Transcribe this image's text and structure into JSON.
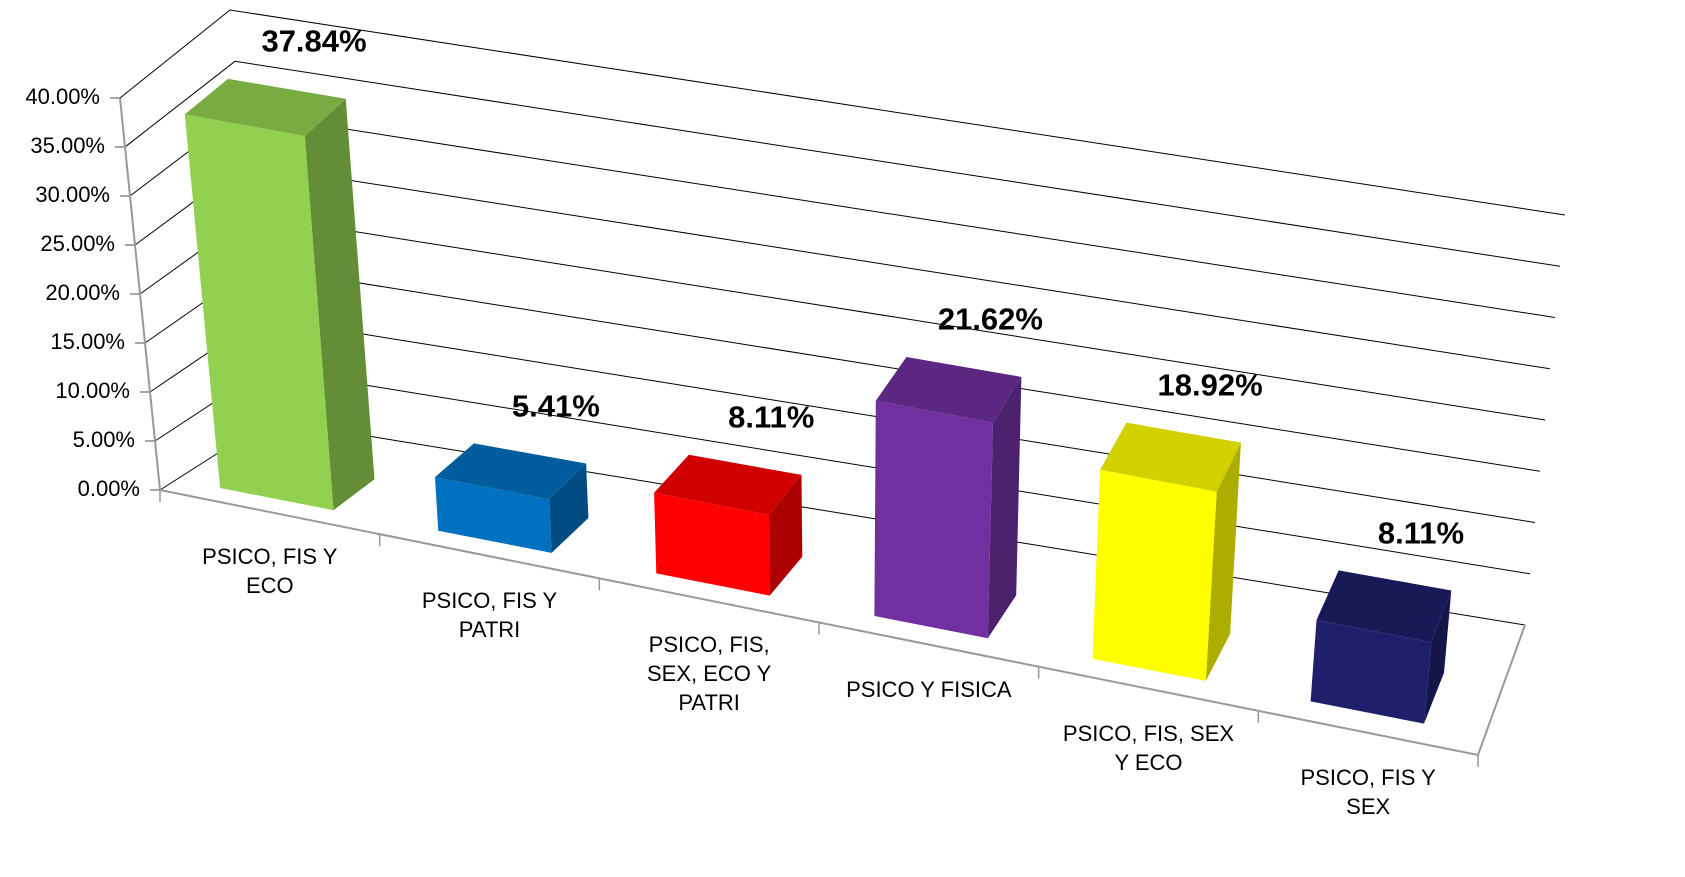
{
  "chart_data": {
    "type": "bar3d",
    "categories": [
      "PSICO, FIS Y ECO",
      "PSICO, FIS Y PATRI",
      "PSICO, FIS, SEX, ECO Y PATRI",
      "PSICO Y FISICA",
      "PSICO, FIS, SEX Y ECO",
      "PSICO, FIS Y SEX"
    ],
    "values": [
      37.84,
      5.41,
      8.11,
      21.62,
      18.92,
      8.11
    ],
    "value_labels": [
      "37.84%",
      "5.41%",
      "8.11%",
      "21.62%",
      "18.92%",
      "8.11%"
    ],
    "colors": [
      "#92d050",
      "#0070c0",
      "#ff0000",
      "#7030a0",
      "#ffff00",
      "#1f1f6b"
    ],
    "ylim": [
      0,
      40
    ],
    "yticks": [
      {
        "value": 0,
        "label": "0.00%"
      },
      {
        "value": 5,
        "label": "5.00%"
      },
      {
        "value": 10,
        "label": "10.00%"
      },
      {
        "value": 15,
        "label": "15.00%"
      },
      {
        "value": 20,
        "label": "20.00%"
      },
      {
        "value": 25,
        "label": "25.00%"
      },
      {
        "value": 30,
        "label": "30.00%"
      },
      {
        "value": 35,
        "label": "35.00%"
      },
      {
        "value": 40,
        "label": "40.00%"
      }
    ],
    "grid": true
  }
}
